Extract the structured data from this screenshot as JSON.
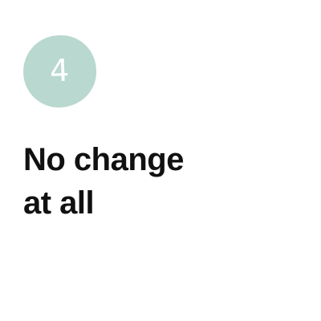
{
  "step": {
    "number": "4",
    "badge_color": "#b9d8cf"
  },
  "heading": {
    "line1": "No change",
    "line2": "at all"
  }
}
